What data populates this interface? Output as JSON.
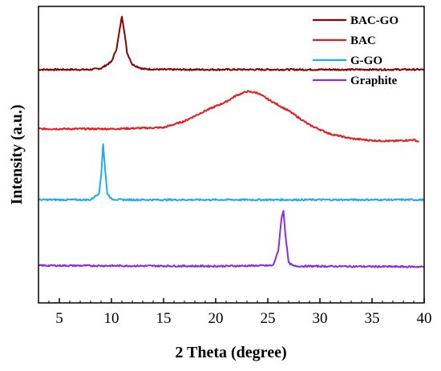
{
  "chart_data": {
    "type": "line",
    "title": "",
    "xlabel": "2 Theta (degree)",
    "ylabel": "Intensity (a.u.)",
    "xlim": [
      3,
      40
    ],
    "x_ticks": [
      "5",
      "10",
      "15",
      "20",
      "25",
      "30",
      "35",
      "40"
    ],
    "y_ticks_shown": false,
    "grid": false,
    "legend_position": "top-right",
    "series": [
      {
        "name": "BAC-GO",
        "color": "#8b0000",
        "baseline": 2.62,
        "x": [
          3,
          8,
          9,
          10,
          10.5,
          10.8,
          11.0,
          11.2,
          11.5,
          12.0,
          13.0,
          15,
          40
        ],
        "y": [
          2.62,
          2.62,
          2.64,
          2.74,
          2.95,
          3.25,
          3.45,
          3.25,
          2.88,
          2.7,
          2.63,
          2.62,
          2.62
        ]
      },
      {
        "name": "BAC",
        "color": "#e81a1a",
        "baseline": 1.7,
        "x": [
          3,
          10,
          15,
          17,
          19,
          21,
          22,
          23,
          24,
          25,
          27,
          29,
          31,
          33,
          35,
          37,
          39,
          39.5
        ],
        "y": [
          1.7,
          1.7,
          1.72,
          1.82,
          1.98,
          2.12,
          2.22,
          2.28,
          2.26,
          2.16,
          1.98,
          1.76,
          1.62,
          1.55,
          1.52,
          1.51,
          1.53,
          1.5
        ]
      },
      {
        "name": "G-GO",
        "color": "#1eaaf0",
        "baseline": 0.6,
        "x": [
          3,
          8,
          8.8,
          9.0,
          9.2,
          9.4,
          9.6,
          10.0,
          11,
          40
        ],
        "y": [
          0.6,
          0.6,
          0.7,
          0.95,
          1.47,
          1.05,
          0.7,
          0.61,
          0.6,
          0.6
        ]
      },
      {
        "name": "Graphite",
        "color": "#8a2be2",
        "baseline": -0.44,
        "x": [
          3,
          20,
          25.5,
          26.0,
          26.3,
          26.5,
          26.7,
          27.0,
          27.5,
          40
        ],
        "y": [
          -0.42,
          -0.43,
          -0.42,
          -0.2,
          0.3,
          0.43,
          0.05,
          -0.38,
          -0.43,
          -0.44
        ]
      }
    ]
  }
}
